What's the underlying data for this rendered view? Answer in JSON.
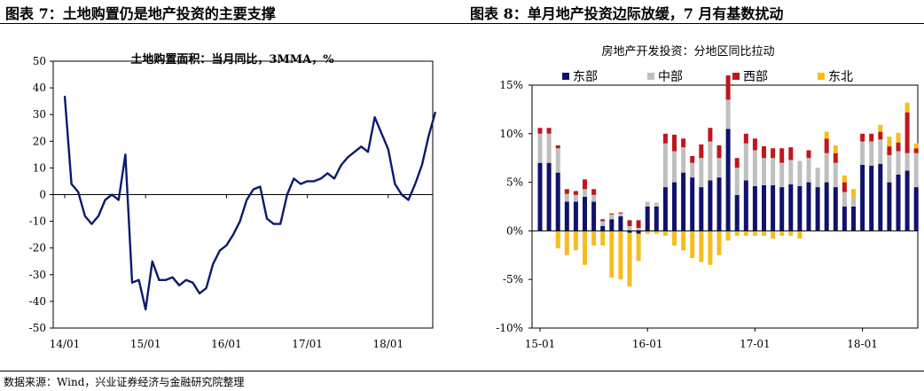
{
  "figures": {
    "left_title": "图表 7：土地购置仍是地产投资的主要支撑",
    "right_title": "图表 8：单月地产投资边际放缓，7 月有基数扰动"
  },
  "source": "数据来源：Wind，兴业证券经济与金融研究院整理",
  "colors": {
    "line": "#0b1a6e",
    "east": "#10126b",
    "central": "#bfbfbf",
    "west": "#c0171c",
    "northeast": "#f4be1e"
  },
  "chart_data": [
    {
      "type": "line",
      "title": "土地购置面积：当月同比，3MMA，%",
      "xlabel": "",
      "ylabel": "",
      "ylim": [
        -50,
        50
      ],
      "yticks": [
        -50,
        -40,
        -30,
        -20,
        -10,
        0,
        10,
        20,
        30,
        40,
        50
      ],
      "xtick_labels": [
        "14/01",
        "15/01",
        "16/01",
        "17/01",
        "18/01"
      ],
      "x_start": "2014-01",
      "x_end": "2018-07",
      "values": [
        37,
        4,
        1,
        -8,
        -11,
        -8,
        -2,
        0,
        -2,
        15,
        -33,
        -32,
        -43,
        -25,
        -32,
        -32,
        -31,
        -34,
        -32,
        -33,
        -37,
        -35,
        -26,
        -21,
        -19,
        -15,
        -10,
        -2,
        2,
        3,
        -9,
        -11,
        -11,
        0,
        6,
        4,
        5,
        5,
        6,
        8,
        6,
        11,
        14,
        16,
        18,
        16,
        29,
        23,
        17,
        4,
        0,
        -2,
        4,
        11,
        22,
        31
      ]
    },
    {
      "type": "bar",
      "stacked": true,
      "title": "房地产开发投资：分地区同比拉动",
      "ylim": [
        -0.1,
        0.15
      ],
      "yticks": [
        -0.1,
        -0.05,
        0,
        0.05,
        0.1,
        0.15
      ],
      "ytick_labels": [
        "-10%",
        "-5%",
        "0%",
        "5%",
        "10%",
        "15%"
      ],
      "xtick_labels": [
        "15-01",
        "16-01",
        "17-01",
        "18-01"
      ],
      "x_start": "2015-01",
      "x_end": "2018-07",
      "legend": [
        "东部",
        "中部",
        "西部",
        "东北"
      ],
      "series": [
        {
          "name": "东部",
          "values": [
            0.07,
            0.07,
            0.06,
            0.03,
            0.03,
            0.035,
            0.03,
            0.005,
            0.012,
            0.015,
            -0.002,
            -0.003,
            0.025,
            0.025,
            0.045,
            0.05,
            0.06,
            0.055,
            0.045,
            0.052,
            0.055,
            0.105,
            0.037,
            0.052,
            0.046,
            0.047,
            0.047,
            0.045,
            0.048,
            0.046,
            0.05,
            0.045,
            0.05,
            0.045,
            0.025,
            0.025,
            0.068,
            0.067,
            0.069,
            0.05,
            0.058,
            0.062,
            0.045
          ]
        },
        {
          "name": "中部",
          "values": [
            0.03,
            0.03,
            0.025,
            0.008,
            0.007,
            0.008,
            0.007,
            0.005,
            0.005,
            0.003,
            0.005,
            0.003,
            0.005,
            0.004,
            0.045,
            0.032,
            0.026,
            0.015,
            0.03,
            0.04,
            0.02,
            0.03,
            0.028,
            0.038,
            0.037,
            0.028,
            0.028,
            0.025,
            0.025,
            0.026,
            0.025,
            0.02,
            0.03,
            0.025,
            0.015,
            0.01,
            0.024,
            0.025,
            0.025,
            0.028,
            0.024,
            0.018,
            0.035
          ]
        },
        {
          "name": "西部",
          "values": [
            0.006,
            0.006,
            0.003,
            0.005,
            0.004,
            0.01,
            0.006,
            0.002,
            0.001,
            0.001,
            0.006,
            0.008,
            0.0,
            0.0,
            0.01,
            0.017,
            0.009,
            0.007,
            0.014,
            0.014,
            0.013,
            0.025,
            0.01,
            0.01,
            0.012,
            0.012,
            0.01,
            0.015,
            0.013,
            0.0,
            0.008,
            0.0,
            0.015,
            0.01,
            0.01,
            0.0,
            0.008,
            0.008,
            0.008,
            0.009,
            0.009,
            0.042,
            0.005
          ]
        },
        {
          "name": "东北",
          "values": [
            0.0,
            0.0,
            -0.018,
            -0.025,
            -0.02,
            -0.035,
            -0.015,
            -0.015,
            -0.048,
            -0.05,
            -0.055,
            -0.028,
            -0.003,
            -0.003,
            -0.005,
            -0.015,
            -0.02,
            -0.028,
            -0.032,
            -0.035,
            -0.025,
            -0.01,
            -0.005,
            -0.005,
            -0.005,
            -0.005,
            -0.008,
            -0.005,
            -0.005,
            -0.008,
            0.0,
            0.0,
            0.007,
            0.008,
            0.007,
            0.008,
            0.0,
            0.0,
            0.007,
            0.01,
            0.01,
            0.01,
            0.005
          ]
        }
      ]
    }
  ]
}
